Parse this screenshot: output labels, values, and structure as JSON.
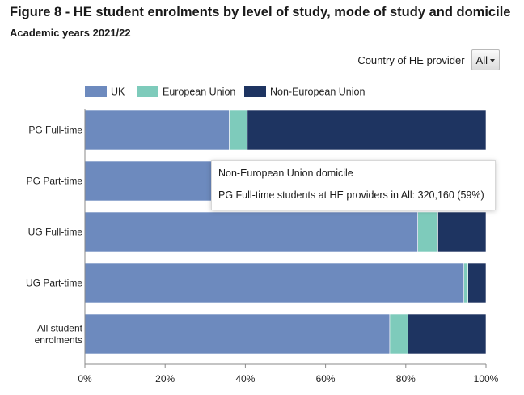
{
  "header": {
    "title": "Figure 8 - HE student enrolments by level of study, mode of study and domicile",
    "subtitle": "Academic years 2021/22"
  },
  "filter": {
    "label": "Country of HE provider",
    "selected": "All"
  },
  "tooltip": {
    "heading": "Non-European Union domicile",
    "detail": "PG Full-time students at HE providers in All: 320,160 (59%)"
  },
  "chart_data": {
    "type": "bar",
    "orientation": "horizontal",
    "stacked": "percent",
    "categories": [
      "PG Full-time",
      "PG Part-time",
      "UG Full-time",
      "UG Part-time",
      "All student enrolments"
    ],
    "series": [
      {
        "name": "UK",
        "color": "#6d8abe",
        "values": [
          36,
          80,
          83,
          94.5,
          76
        ]
      },
      {
        "name": "European Union",
        "color": "#7ecbbb",
        "values": [
          4.5,
          2,
          5,
          1,
          4.5
        ]
      },
      {
        "name": "Non-European Union",
        "color": "#1e3461",
        "values": [
          59.5,
          18,
          12,
          4.5,
          19.5
        ]
      }
    ],
    "xlim": [
      0,
      100
    ],
    "x_ticks": [
      "0%",
      "20%",
      "40%",
      "60%",
      "80%",
      "100%"
    ],
    "legend": "top-left",
    "grid": false
  }
}
